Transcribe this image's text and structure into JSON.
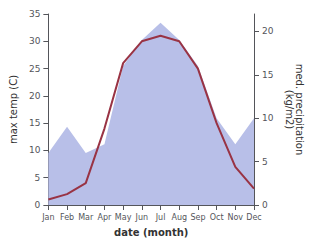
{
  "chart_data": {
    "type": "line",
    "categories": [
      "Jan",
      "Feb",
      "Mar",
      "Apr",
      "May",
      "Jun",
      "Jul",
      "Aug",
      "Sep",
      "Oct",
      "Nov",
      "Dec"
    ],
    "xlabel": "date (month)",
    "ylabel": "max temp (C)",
    "y2label": "med. precipitation\n(kg/m2)",
    "ylim": [
      0,
      35
    ],
    "yticks": [
      0,
      5,
      10,
      15,
      20,
      25,
      30,
      35
    ],
    "y2lim": [
      0,
      22
    ],
    "y2ticks": [
      0,
      5,
      10,
      15,
      20
    ],
    "grid": false,
    "series": [
      {
        "type": "area",
        "color": "#b8bfe8",
        "axis": "y2",
        "values": [
          6,
          9,
          6,
          7,
          16,
          19,
          21,
          19,
          16,
          10,
          7,
          10
        ]
      },
      {
        "type": "line",
        "color": "#993344",
        "values": [
          1,
          2,
          4,
          14,
          26,
          30,
          31,
          30,
          25,
          15,
          7,
          3
        ]
      }
    ]
  }
}
